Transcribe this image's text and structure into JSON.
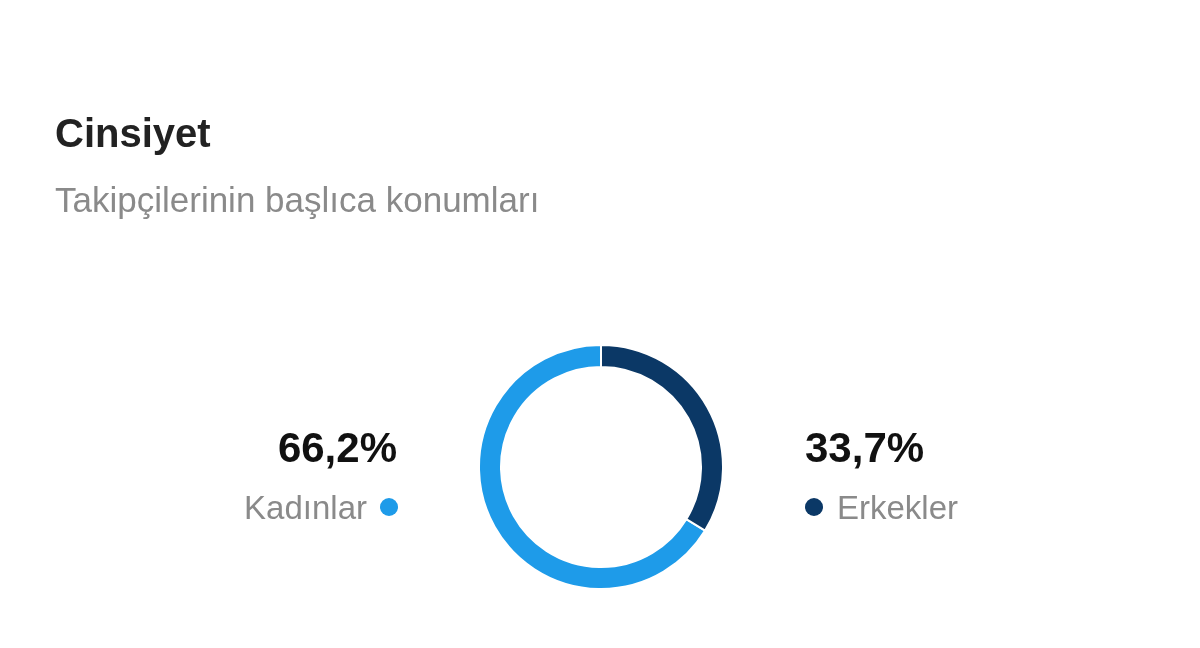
{
  "chart_data": {
    "type": "donut",
    "title": "Cinsiyet",
    "subtitle": "Takipçilerinin başlıca konumları",
    "categories": [
      "Kadınlar",
      "Erkekler"
    ],
    "values": [
      66.2,
      33.7
    ],
    "colors": [
      "#1e9be9",
      "#0b3866"
    ],
    "value_labels": [
      "66,2%",
      "33,7%"
    ]
  }
}
